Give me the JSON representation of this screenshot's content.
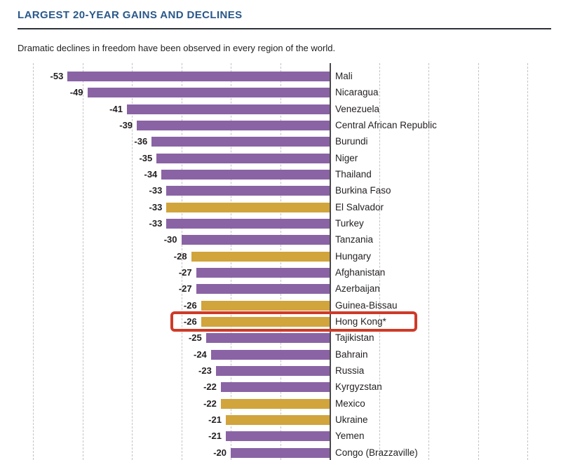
{
  "header": {
    "title": "LARGEST 20-YEAR GAINS AND DECLINES",
    "subtitle": "Dramatic declines in freedom have been observed in every region of the world."
  },
  "chart_data": {
    "type": "bar",
    "orientation": "horizontal",
    "title": "LARGEST 20-YEAR GAINS AND DECLINES",
    "subtitle": "Dramatic declines in freedom have been observed in every region of the world.",
    "xlim": [
      -60,
      40
    ],
    "gridlines": [
      -60,
      -50,
      -40,
      -30,
      -20,
      -10,
      0,
      10,
      20,
      30,
      40
    ],
    "grid_style": "dashed-vertical",
    "axis_at_zero": true,
    "value_label_position": "left-of-bar",
    "category_label_position": "right-of-axis",
    "highlighted_category": "Hong Kong*",
    "colors": {
      "purple": "#8a63a5",
      "gold": "#d1a43c",
      "highlight_box": "#cf3a28"
    },
    "bars": [
      {
        "label": "Mali",
        "value": -53,
        "color_key": "purple",
        "highlighted": false
      },
      {
        "label": "Nicaragua",
        "value": -49,
        "color_key": "purple",
        "highlighted": false
      },
      {
        "label": "Venezuela",
        "value": -41,
        "color_key": "purple",
        "highlighted": false
      },
      {
        "label": "Central African Republic",
        "value": -39,
        "color_key": "purple",
        "highlighted": false
      },
      {
        "label": "Burundi",
        "value": -36,
        "color_key": "purple",
        "highlighted": false
      },
      {
        "label": "Niger",
        "value": -35,
        "color_key": "purple",
        "highlighted": false
      },
      {
        "label": "Thailand",
        "value": -34,
        "color_key": "purple",
        "highlighted": false
      },
      {
        "label": "Burkina Faso",
        "value": -33,
        "color_key": "purple",
        "highlighted": false
      },
      {
        "label": "El Salvador",
        "value": -33,
        "color_key": "gold",
        "highlighted": false
      },
      {
        "label": "Turkey",
        "value": -33,
        "color_key": "purple",
        "highlighted": false
      },
      {
        "label": "Tanzania",
        "value": -30,
        "color_key": "purple",
        "highlighted": false
      },
      {
        "label": "Hungary",
        "value": -28,
        "color_key": "gold",
        "highlighted": false
      },
      {
        "label": "Afghanistan",
        "value": -27,
        "color_key": "purple",
        "highlighted": false
      },
      {
        "label": "Azerbaijan",
        "value": -27,
        "color_key": "purple",
        "highlighted": false
      },
      {
        "label": "Guinea-Bissau",
        "value": -26,
        "color_key": "gold",
        "highlighted": false
      },
      {
        "label": "Hong Kong*",
        "value": -26,
        "color_key": "gold",
        "highlighted": true
      },
      {
        "label": "Tajikistan",
        "value": -25,
        "color_key": "purple",
        "highlighted": false
      },
      {
        "label": "Bahrain",
        "value": -24,
        "color_key": "purple",
        "highlighted": false
      },
      {
        "label": "Russia",
        "value": -23,
        "color_key": "purple",
        "highlighted": false
      },
      {
        "label": "Kyrgyzstan",
        "value": -22,
        "color_key": "purple",
        "highlighted": false
      },
      {
        "label": "Mexico",
        "value": -22,
        "color_key": "gold",
        "highlighted": false
      },
      {
        "label": "Ukraine",
        "value": -21,
        "color_key": "gold",
        "highlighted": false
      },
      {
        "label": "Yemen",
        "value": -21,
        "color_key": "purple",
        "highlighted": false
      },
      {
        "label": "Congo (Brazzaville)",
        "value": -20,
        "color_key": "purple",
        "highlighted": false
      }
    ]
  }
}
